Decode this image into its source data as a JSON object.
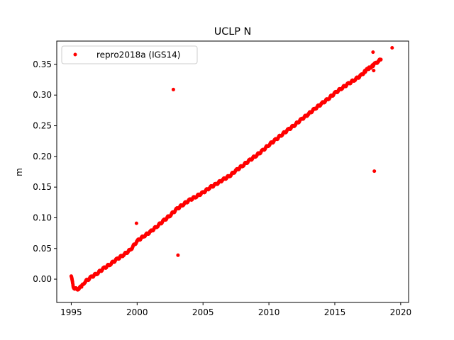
{
  "chart_data": {
    "type": "scatter",
    "title": "UCLP N",
    "xlabel": "",
    "ylabel": "m",
    "xlim": [
      1993.9,
      2020.6
    ],
    "ylim": [
      -0.038,
      0.388
    ],
    "xticks": [
      1995,
      2000,
      2005,
      2010,
      2015,
      2020
    ],
    "xtick_labels": [
      "1995",
      "2000",
      "2005",
      "2010",
      "2015",
      "2020"
    ],
    "yticks": [
      0.0,
      0.05,
      0.1,
      0.15,
      0.2,
      0.25,
      0.3,
      0.35
    ],
    "ytick_labels": [
      "0.00",
      "0.05",
      "0.10",
      "0.15",
      "0.20",
      "0.25",
      "0.30",
      "0.35"
    ],
    "grid": false,
    "legend": {
      "placement": "top-left",
      "entries": [
        "repro2018a (IGS14)"
      ]
    },
    "series": [
      {
        "name": "repro2018a (IGS14)",
        "color": "#ff0000",
        "marker": "circle",
        "trend": {
          "x": [
            1995.0,
            1995.15,
            1995.3,
            1995.5,
            1995.8,
            1996.0,
            1996.5,
            1997.0,
            1997.5,
            1998.0,
            1998.5,
            1999.0,
            1999.5,
            2000.0,
            2000.5,
            2001.0,
            2001.5,
            2002.0,
            2002.5,
            2003.0,
            2003.5,
            2004.0,
            2004.5,
            2005.0,
            2005.5,
            2006.0,
            2006.5,
            2007.0,
            2007.5,
            2008.0,
            2008.5,
            2009.0,
            2009.5,
            2010.0,
            2010.5,
            2011.0,
            2011.5,
            2012.0,
            2012.5,
            2013.0,
            2013.5,
            2014.0,
            2014.5,
            2015.0,
            2015.5,
            2016.0,
            2016.5,
            2017.0,
            2017.3,
            2017.6,
            2017.9,
            2018.1,
            2018.3,
            2018.5
          ],
          "y": [
            0.005,
            -0.012,
            -0.016,
            -0.016,
            -0.012,
            -0.005,
            0.003,
            0.01,
            0.018,
            0.025,
            0.033,
            0.04,
            0.048,
            0.062,
            0.07,
            0.077,
            0.086,
            0.095,
            0.104,
            0.114,
            0.122,
            0.129,
            0.135,
            0.141,
            0.149,
            0.155,
            0.162,
            0.168,
            0.177,
            0.185,
            0.193,
            0.201,
            0.209,
            0.219,
            0.227,
            0.236,
            0.244,
            0.252,
            0.261,
            0.269,
            0.278,
            0.286,
            0.294,
            0.303,
            0.311,
            0.318,
            0.325,
            0.332,
            0.339,
            0.344,
            0.348,
            0.352,
            0.355,
            0.358
          ]
        },
        "outliers": {
          "x": [
            1999.95,
            2002.75,
            2003.1,
            2017.9,
            2017.95,
            2018.0,
            2019.35
          ],
          "y": [
            0.091,
            0.309,
            0.039,
            0.37,
            0.34,
            0.176,
            0.377
          ]
        }
      }
    ]
  }
}
